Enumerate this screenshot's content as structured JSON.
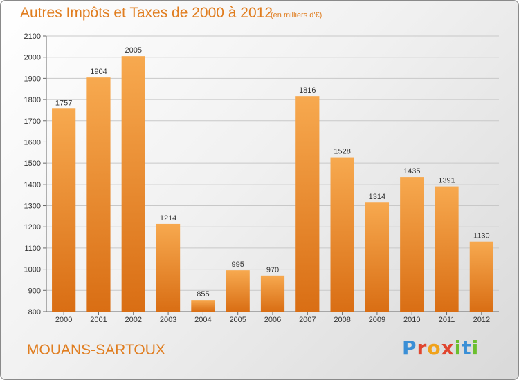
{
  "header": {
    "title": "Autres Impôts et Taxes de 2000 à 2012",
    "subtitle": "(en milliers d'€)"
  },
  "footer": {
    "commune": "MOUANS-SARTOUX",
    "logo_text": "Proxiti"
  },
  "colors": {
    "bar_top": "#f7a94f",
    "bar_bottom": "#d96e14",
    "accent": "#e07d1f"
  },
  "chart_data": {
    "type": "bar",
    "title": "Autres Impôts et Taxes de 2000 à 2012",
    "subtitle": "(en milliers d'€)",
    "categories": [
      "2000",
      "2001",
      "2002",
      "2003",
      "2004",
      "2005",
      "2006",
      "2007",
      "2008",
      "2009",
      "2010",
      "2011",
      "2012"
    ],
    "values": [
      1757,
      1904,
      2005,
      1214,
      855,
      995,
      970,
      1816,
      1528,
      1314,
      1435,
      1391,
      1130
    ],
    "ylim": [
      800,
      2100
    ],
    "yticks": [
      800,
      900,
      1000,
      1100,
      1200,
      1300,
      1400,
      1500,
      1600,
      1700,
      1800,
      1900,
      2000,
      2100
    ],
    "xlabel": "",
    "ylabel": "",
    "grid": true,
    "data_labels": true
  }
}
